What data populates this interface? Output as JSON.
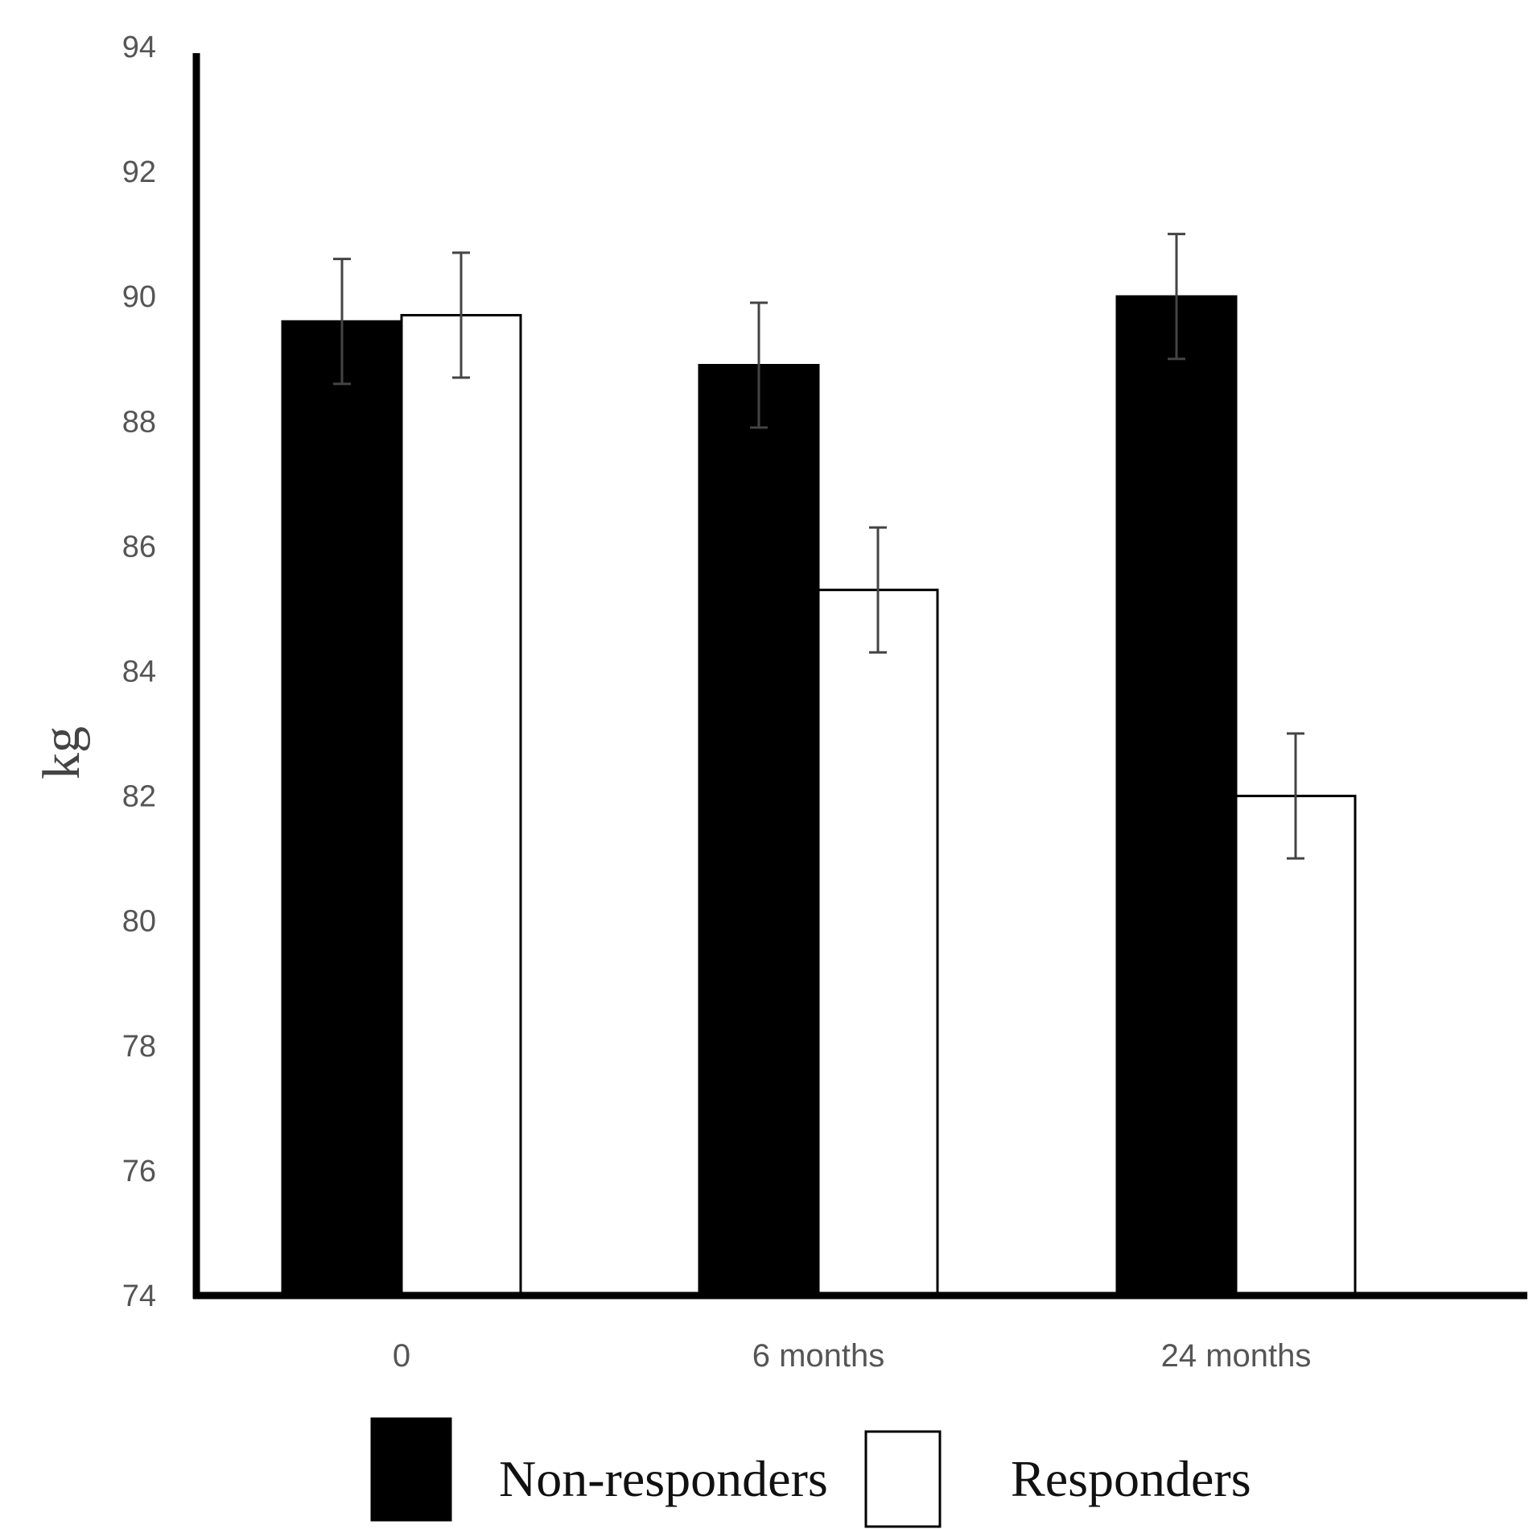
{
  "chart_data": {
    "type": "bar",
    "title": "",
    "xlabel": "",
    "ylabel": "kg",
    "categories": [
      "0",
      "6 months",
      "24 months"
    ],
    "ylim": [
      74,
      94
    ],
    "yticks": [
      74,
      76,
      78,
      80,
      82,
      84,
      86,
      88,
      90,
      92,
      94
    ],
    "grid": false,
    "legend": "bottom",
    "series": [
      {
        "name": "Non-responders",
        "color": "#000000",
        "values": [
          89.6,
          88.9,
          90.0
        ],
        "error": [
          1.0,
          1.0,
          1.0
        ]
      },
      {
        "name": "Responders",
        "color": "#ffffff",
        "values": [
          89.7,
          85.3,
          82.0
        ],
        "error": [
          1.0,
          1.0,
          1.0
        ]
      }
    ]
  }
}
